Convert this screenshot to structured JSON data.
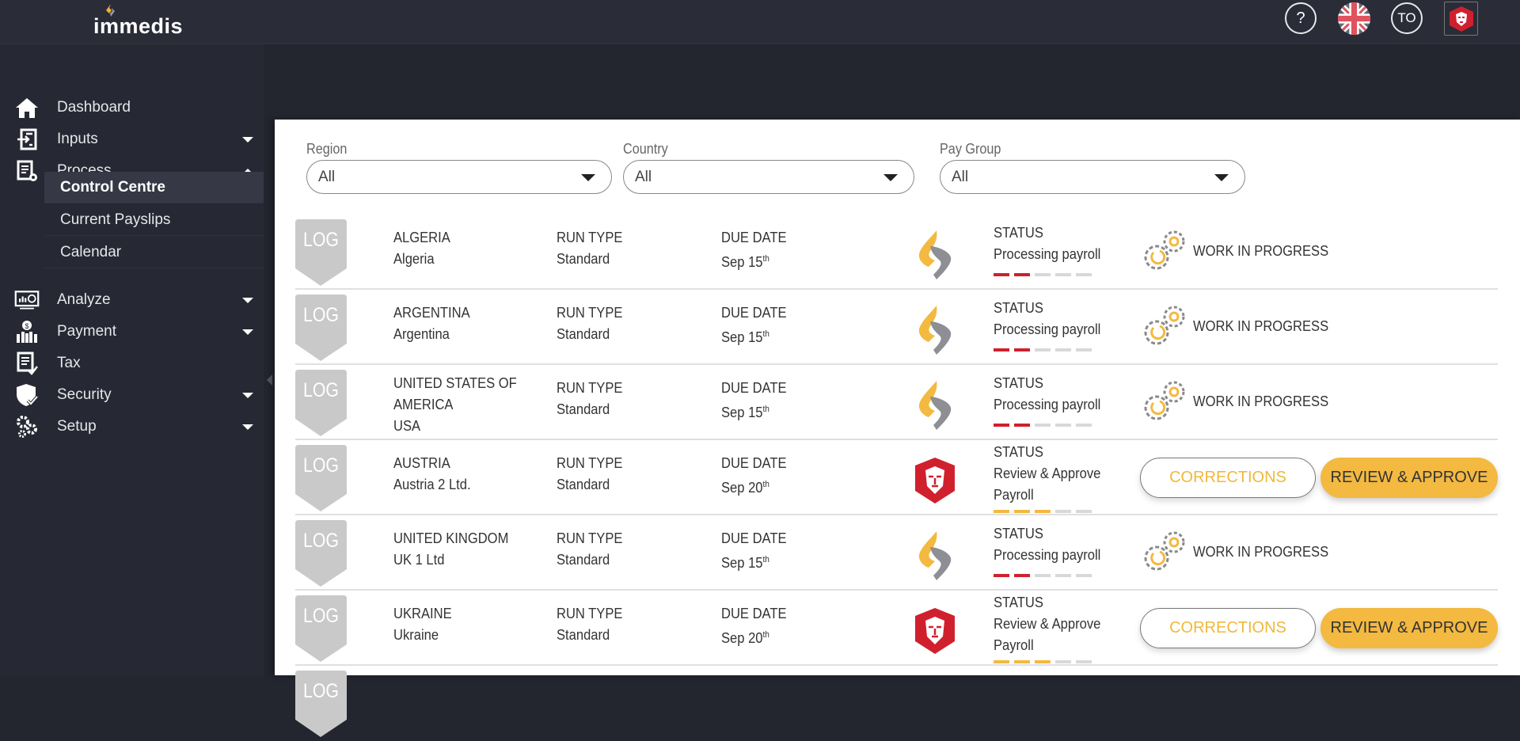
{
  "header": {
    "brand": "immedis",
    "help_icon": "?",
    "user_initials": "TO"
  },
  "sidebar": {
    "items": [
      {
        "label": "Dashboard",
        "icon": "home-icon"
      },
      {
        "label": "Inputs",
        "icon": "inputs-icon",
        "caret": "down"
      },
      {
        "label": "Process",
        "icon": "process-icon",
        "caret": "up"
      },
      {
        "label": "Analyze",
        "icon": "analyze-icon",
        "caret": "down"
      },
      {
        "label": "Payment",
        "icon": "payment-icon",
        "caret": "down"
      },
      {
        "label": "Tax",
        "icon": "tax-icon"
      },
      {
        "label": "Security",
        "icon": "security-icon",
        "caret": "down"
      },
      {
        "label": "Setup",
        "icon": "setup-icon",
        "caret": "down"
      }
    ],
    "sub_items": [
      {
        "label": "Control Centre",
        "active": true
      },
      {
        "label": "Current Payslips"
      },
      {
        "label": "Calendar"
      }
    ]
  },
  "filters": [
    {
      "label": "Region",
      "value": "All"
    },
    {
      "label": "Country",
      "value": "All"
    },
    {
      "label": "Pay Group",
      "value": "All"
    }
  ],
  "labels": {
    "log": "LOG",
    "run_type": "RUN TYPE",
    "due_date": "DUE DATE",
    "status": "STATUS",
    "wip": "WORK IN PROGRESS",
    "corrections": "CORRECTIONS",
    "review": "REVIEW & APPROVE"
  },
  "colors": {
    "accent": "#f3b940",
    "danger": "#d0202e",
    "sidebar": "#262833"
  },
  "rows": [
    {
      "country": "ALGERIA",
      "entity": "Algeria",
      "run_type": "Standard",
      "due": "Sep 15",
      "due_sup": "th",
      "status": "Processing payroll",
      "state": "wip",
      "progress": 2
    },
    {
      "country": "ARGENTINA",
      "entity": "Argentina",
      "run_type": "Standard",
      "due": "Sep 15",
      "due_sup": "th",
      "status": "Processing payroll",
      "state": "wip",
      "progress": 2
    },
    {
      "country": "UNITED STATES OF AMERICA",
      "entity": "USA",
      "run_type": "Standard",
      "due": "Sep 15",
      "due_sup": "th",
      "status": "Processing payroll",
      "state": "wip",
      "progress": 2
    },
    {
      "country": "AUSTRIA",
      "entity": "Austria 2 Ltd.",
      "run_type": "Standard",
      "due": "Sep 20",
      "due_sup": "th",
      "status": "Review & Approve Payroll",
      "state": "review",
      "progress": 3
    },
    {
      "country": "UNITED KINGDOM",
      "entity": "UK 1 Ltd",
      "run_type": "Standard",
      "due": "Sep 15",
      "due_sup": "th",
      "status": "Processing payroll",
      "state": "wip",
      "progress": 2
    },
    {
      "country": "UKRAINE",
      "entity": "Ukraine",
      "run_type": "Standard",
      "due": "Sep 20",
      "due_sup": "th",
      "status": "Review & Approve Payroll",
      "state": "review",
      "progress": 3
    }
  ]
}
